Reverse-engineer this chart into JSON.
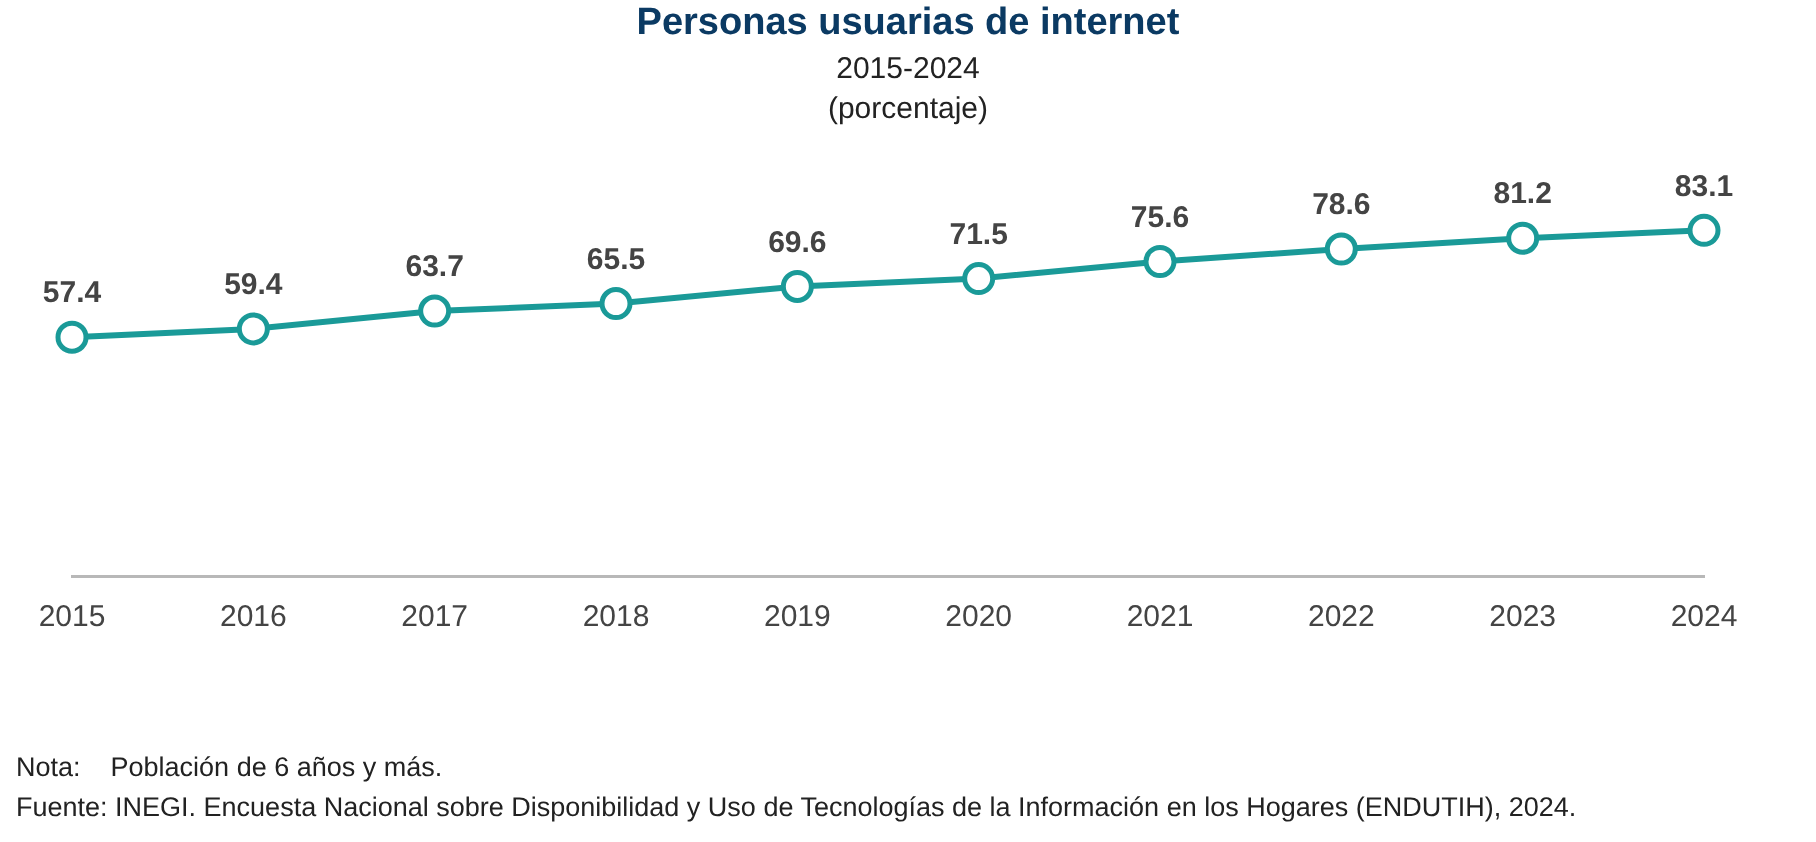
{
  "chart_data": {
    "type": "line",
    "title": "Personas usuarias de internet",
    "subtitle": "2015-2024\n(porcentaje)",
    "categories": [
      "2015",
      "2016",
      "2017",
      "2018",
      "2019",
      "2020",
      "2021",
      "2022",
      "2023",
      "2024"
    ],
    "series": [
      {
        "color": "#1a9a98",
        "values": [
          57.4,
          59.4,
          63.7,
          65.5,
          69.6,
          71.5,
          75.6,
          78.6,
          81.2,
          83.1
        ]
      }
    ],
    "tick_labels": "x",
    "grid": false,
    "legend": false,
    "marker": "circle",
    "data_labels": true,
    "annotations": [
      "Nota:    Población de 6 años y más.",
      "Fuente: INEGI. Encuesta Nacional sobre Disponibilidad y Uso de Tecnologías de la Información en los Hogares (ENDUTIH), 2024."
    ]
  }
}
